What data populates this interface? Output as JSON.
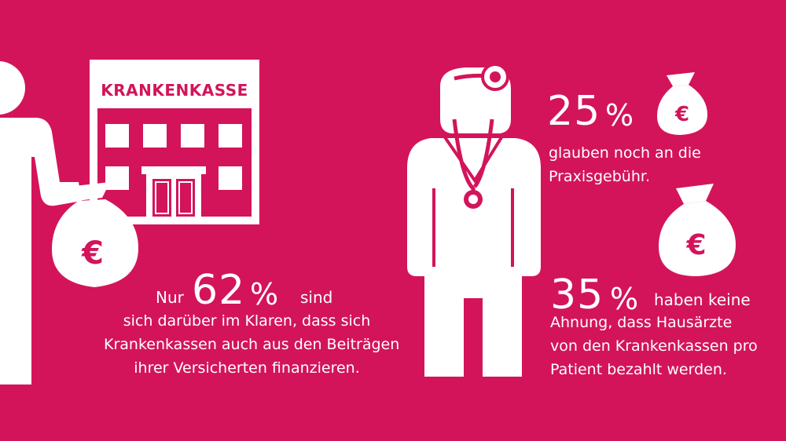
{
  "colors": {
    "background": "#d3145a",
    "foreground": "#ffffff"
  },
  "icons": [
    "person-icon",
    "building-icon",
    "money-bag-icon",
    "doctor-icon",
    "stethoscope-icon",
    "head-mirror-icon",
    "euro-icon"
  ],
  "left": {
    "building_label": "KRANKENKASSE",
    "bag_symbol": "€",
    "prefix": "Nur",
    "percent_number": "62",
    "percent_sign": "%",
    "suffix": "sind",
    "lines": [
      "sich darüber im Klaren, dass sich",
      "Krankenkassen auch aus den Beiträgen",
      "ihrer Versicherten finanzieren."
    ]
  },
  "right": {
    "stat1": {
      "percent_number": "25",
      "percent_sign": "%",
      "bag_symbol": "€",
      "lines": [
        "glauben noch an die",
        "Praxisgebühr."
      ]
    },
    "stat2": {
      "percent_number": "35",
      "percent_sign": "%",
      "bag_symbol": "€",
      "suffix": "haben keine",
      "lines": [
        "Ahnung, dass Hausärzte",
        "von den Krankenkassen pro",
        "Patient bezahlt werden."
      ]
    }
  }
}
